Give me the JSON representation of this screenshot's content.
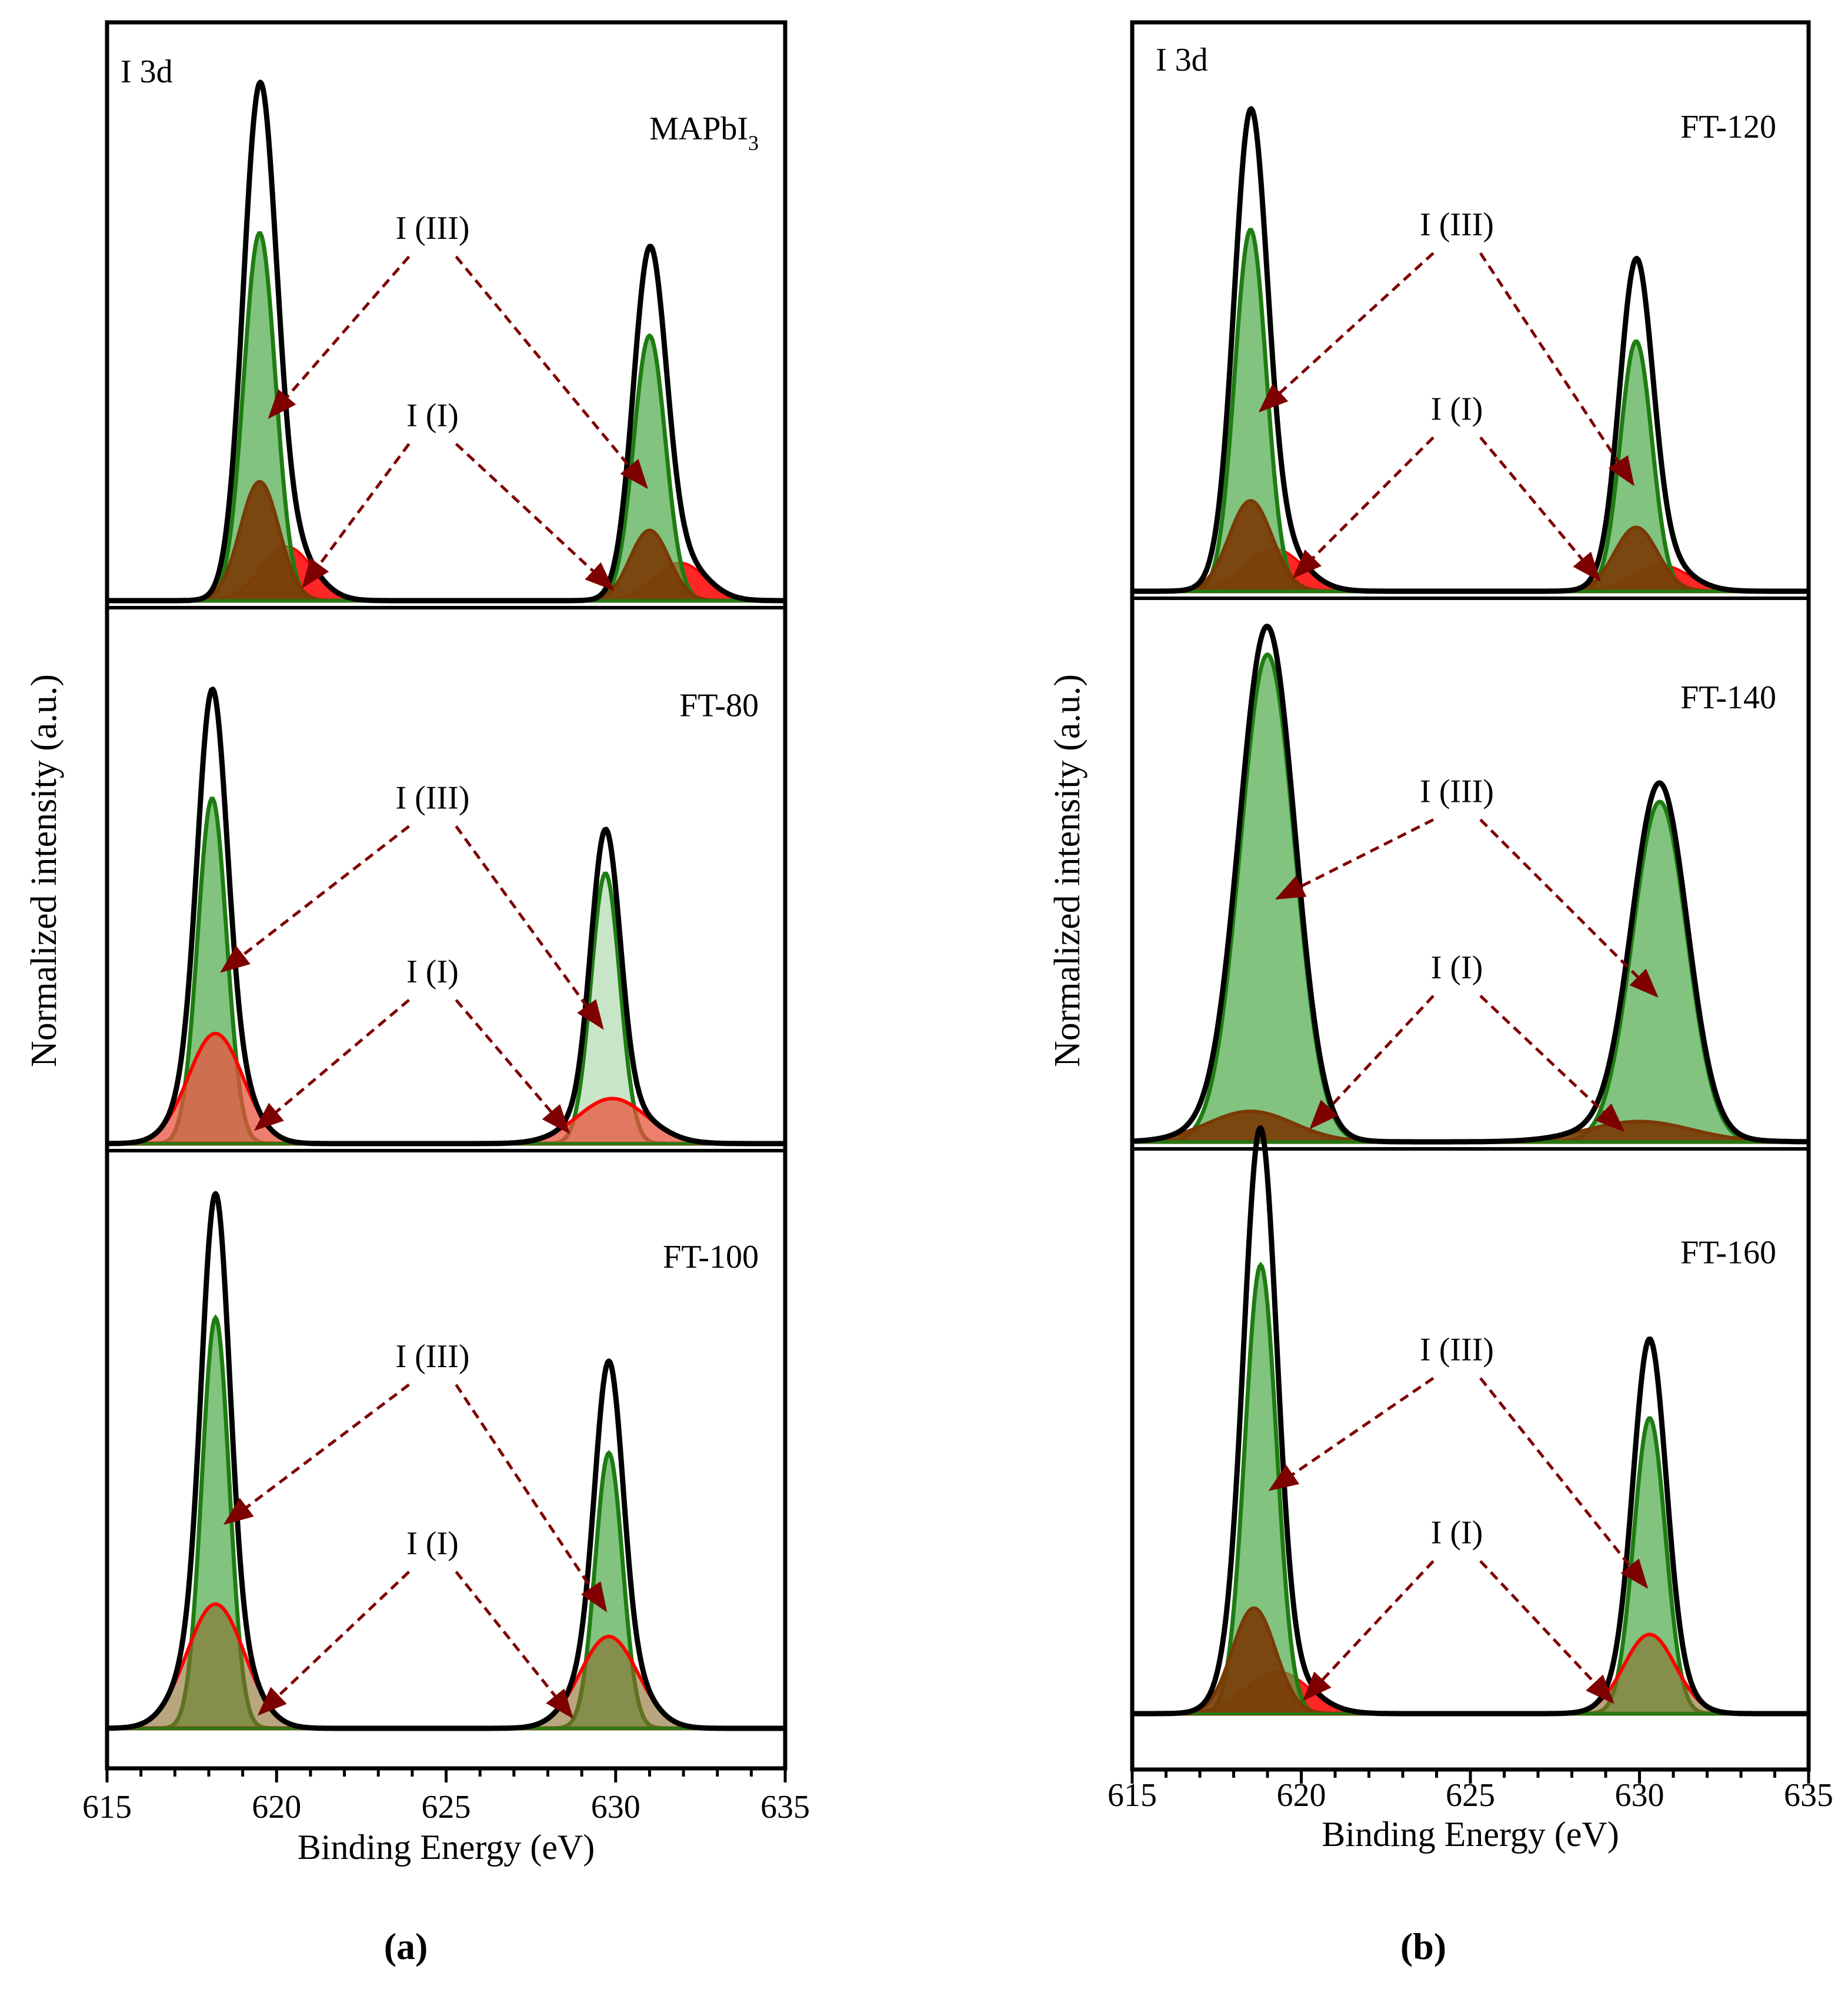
{
  "figure": {
    "caption_a": "(a)",
    "caption_b": "(b)"
  },
  "colors": {
    "envelope": "#000000",
    "i3_line": "#1e7d12",
    "i3_fill": "#4caa48",
    "i1_line": "#ff0000",
    "i1_fill_brown": "#7a3a06",
    "i1_fill_red": "#e8543f",
    "arrow": "#7f0000",
    "baseline": "#1e7d12"
  },
  "chart_data": [
    {
      "id": "a",
      "type": "line",
      "chart_kind": "XPS spectrum fits (stacked panels)",
      "xlabel": "Binding Energy (eV)",
      "ylabel": "Normalized intensity (a.u.)",
      "xlim": [
        615,
        635
      ],
      "xticks": [
        615,
        620,
        625,
        630,
        635
      ],
      "x_reversed": false,
      "panels": [
        {
          "sample_label": "MAPbI",
          "sample_label_sub": "3",
          "region_label": "I 3d",
          "label_iii": "I (III)",
          "label_i": "I (I)",
          "fill_style": "brown",
          "ylim": [
            0,
            1.05
          ],
          "peaks": [
            {
              "component": "I (III)",
              "center": 619.5,
              "height": 0.68,
              "fwhm": 1.1
            },
            {
              "component": "I (III)",
              "center": 631.0,
              "height": 0.49,
              "fwhm": 1.1
            },
            {
              "component": "I (I)",
              "center": 619.5,
              "height": 0.22,
              "fwhm": 1.35
            },
            {
              "component": "I (I)",
              "center": 631.0,
              "height": 0.13,
              "fwhm": 1.35
            },
            {
              "component": "I (I) shoulder",
              "center": 620.3,
              "height": 0.1,
              "fwhm": 1.8
            },
            {
              "component": "I (I) shoulder",
              "center": 631.9,
              "height": 0.07,
              "fwhm": 1.8
            }
          ]
        },
        {
          "sample_label": "FT-80",
          "label_iii": "I (III)",
          "label_i": "I (I)",
          "fill_style": "red",
          "ylim": [
            0,
            1.05
          ],
          "peaks": [
            {
              "component": "I (III)",
              "center": 618.1,
              "height": 0.69,
              "fwhm": 1.0
            },
            {
              "component": "I (III)",
              "center": 629.7,
              "height": 0.54,
              "fwhm": 1.0
            },
            {
              "component": "I (I)",
              "center": 618.2,
              "height": 0.22,
              "fwhm": 1.9
            },
            {
              "component": "I (I)",
              "center": 629.9,
              "height": 0.09,
              "fwhm": 2.4
            }
          ]
        },
        {
          "sample_label": "FT-100",
          "label_iii": "I (III)",
          "label_i": "I (I)",
          "fill_style": "olive",
          "ylim": [
            0,
            1.05
          ],
          "peaks": [
            {
              "component": "I (III)",
              "center": 618.2,
              "height": 0.76,
              "fwhm": 0.95
            },
            {
              "component": "I (III)",
              "center": 629.8,
              "height": 0.51,
              "fwhm": 0.95
            },
            {
              "component": "I (I)",
              "center": 618.2,
              "height": 0.23,
              "fwhm": 2.0
            },
            {
              "component": "I (I)",
              "center": 629.8,
              "height": 0.17,
              "fwhm": 2.0
            }
          ]
        }
      ]
    },
    {
      "id": "b",
      "type": "line",
      "chart_kind": "XPS spectrum fits (stacked panels)",
      "xlabel": "Binding Energy (eV)",
      "ylabel": "Normalized intensity (a.u.)",
      "xlim": [
        615,
        635
      ],
      "xticks": [
        615,
        620,
        625,
        630,
        635
      ],
      "x_reversed": false,
      "panels": [
        {
          "sample_label": "FT-120",
          "region_label": "I 3d",
          "label_iii": "I (III)",
          "label_i": "I (I)",
          "fill_style": "brown",
          "ylim": [
            0,
            1.05
          ],
          "peaks": [
            {
              "component": "I (III)",
              "center": 618.5,
              "height": 0.68,
              "fwhm": 1.1
            },
            {
              "component": "I (III)",
              "center": 629.9,
              "height": 0.47,
              "fwhm": 1.1
            },
            {
              "component": "I (I)",
              "center": 618.5,
              "height": 0.17,
              "fwhm": 1.5
            },
            {
              "component": "I (I)",
              "center": 629.9,
              "height": 0.12,
              "fwhm": 1.5
            },
            {
              "component": "I (I) shoulder",
              "center": 619.2,
              "height": 0.08,
              "fwhm": 2.0
            },
            {
              "component": "I (I) shoulder",
              "center": 630.6,
              "height": 0.05,
              "fwhm": 2.0
            }
          ]
        },
        {
          "sample_label": "FT-140",
          "label_iii": "I (III)",
          "label_i": "I (I)",
          "fill_style": "brown",
          "ylim": [
            0,
            1.05
          ],
          "peaks": [
            {
              "component": "I (III)",
              "center": 619.0,
              "height": 0.96,
              "fwhm": 1.9
            },
            {
              "component": "I (III)",
              "center": 630.6,
              "height": 0.67,
              "fwhm": 1.9
            },
            {
              "component": "I (I)",
              "center": 618.5,
              "height": 0.06,
              "fwhm": 3.0
            },
            {
              "component": "I (I)",
              "center": 630.0,
              "height": 0.04,
              "fwhm": 3.6
            }
          ]
        },
        {
          "sample_label": "FT-160",
          "label_iii": "I (III)",
          "label_i": "I (I)",
          "fill_style": "brown-olive",
          "ylim": [
            0,
            1.05
          ],
          "peaks": [
            {
              "component": "I (III)",
              "center": 618.8,
              "height": 0.85,
              "fwhm": 1.1
            },
            {
              "component": "I (III)",
              "center": 630.3,
              "height": 0.56,
              "fwhm": 1.1
            },
            {
              "component": "I (I)",
              "center": 618.6,
              "height": 0.2,
              "fwhm": 1.5
            },
            {
              "component": "I (I)",
              "center": 630.3,
              "height": 0.15,
              "fwhm": 1.8
            },
            {
              "component": "I (I) shoulder",
              "center": 619.3,
              "height": 0.08,
              "fwhm": 2.2
            }
          ]
        }
      ]
    }
  ]
}
